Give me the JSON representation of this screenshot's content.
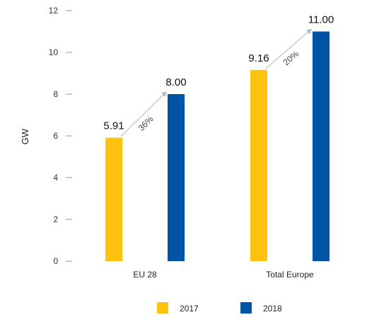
{
  "chart_data": {
    "type": "bar",
    "ylabel": "GW",
    "xlabel": "",
    "ylim": [
      0,
      12
    ],
    "yticks": [
      0,
      2,
      4,
      6,
      8,
      10,
      12
    ],
    "grid": false,
    "legend_position": "bottom",
    "categories": [
      "EU 28",
      "Total Europe"
    ],
    "series": [
      {
        "name": "2017",
        "color": "#FFC20E",
        "values": [
          5.91,
          9.16
        ],
        "labels": [
          "5.91",
          "9.16"
        ]
      },
      {
        "name": "2018",
        "color": "#0054A6",
        "values": [
          8.0,
          11.0
        ],
        "labels": [
          "8.00",
          "11.00"
        ]
      }
    ],
    "annotations": [
      {
        "category": "EU 28",
        "text": "36%"
      },
      {
        "category": "Total Europe",
        "text": "20%"
      }
    ]
  }
}
